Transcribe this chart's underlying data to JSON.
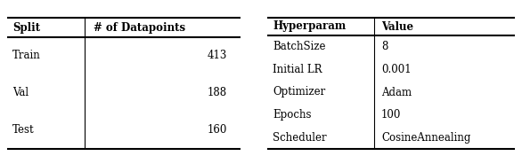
{
  "table1_headers": [
    "Split",
    "# of Datapoints"
  ],
  "table1_rows": [
    [
      "Train",
      "413"
    ],
    [
      "Val",
      "188"
    ],
    [
      "Test",
      "160"
    ]
  ],
  "table2_headers": [
    "Hyperparam",
    "Value"
  ],
  "table2_rows": [
    [
      "BatchSize",
      "8"
    ],
    [
      "Initial LR",
      "0.001"
    ],
    [
      "Optimizer",
      "Adam"
    ],
    [
      "Epochs",
      "100"
    ],
    [
      "Scheduler",
      "CosineAnnealing"
    ]
  ],
  "background_color": "#ffffff",
  "text_color": "#000000",
  "line_color": "#000000",
  "header_fontsize": 8.5,
  "body_fontsize": 8.5,
  "figsize": [
    5.86,
    1.76
  ],
  "dpi": 100
}
